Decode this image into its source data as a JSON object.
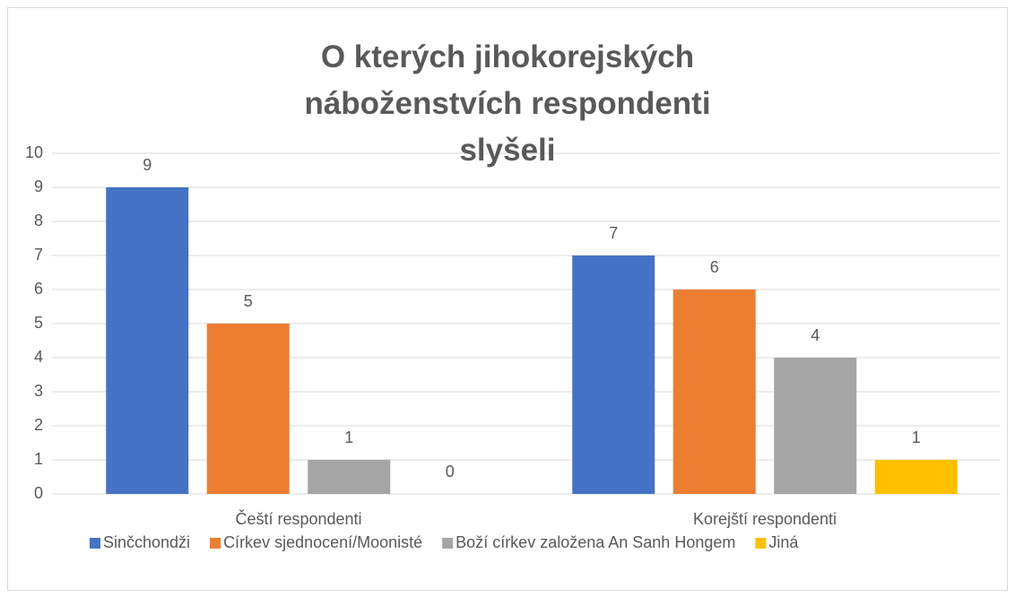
{
  "chart_data": {
    "type": "bar",
    "title": "O kterých jihokorejských náboženstvích respondenti slyšeli",
    "categories": [
      "Čeští respondenti",
      "Korejští respondenti"
    ],
    "series": [
      {
        "name": "Sinčchondži",
        "color": "#4472c4",
        "values": [
          9,
          7
        ]
      },
      {
        "name": "Církev sjednocení/Moonisté",
        "color": "#ed7d31",
        "values": [
          5,
          6
        ]
      },
      {
        "name": "Boží církev založena An Sanh Hongem",
        "color": "#a5a5a5",
        "values": [
          1,
          4
        ]
      },
      {
        "name": "Jiná",
        "color": "#ffc000",
        "values": [
          0,
          1
        ]
      }
    ],
    "ylim": [
      0,
      10
    ],
    "yticks": [
      0,
      1,
      2,
      3,
      4,
      5,
      6,
      7,
      8,
      9,
      10
    ],
    "grid": true,
    "legend": "bottom"
  }
}
